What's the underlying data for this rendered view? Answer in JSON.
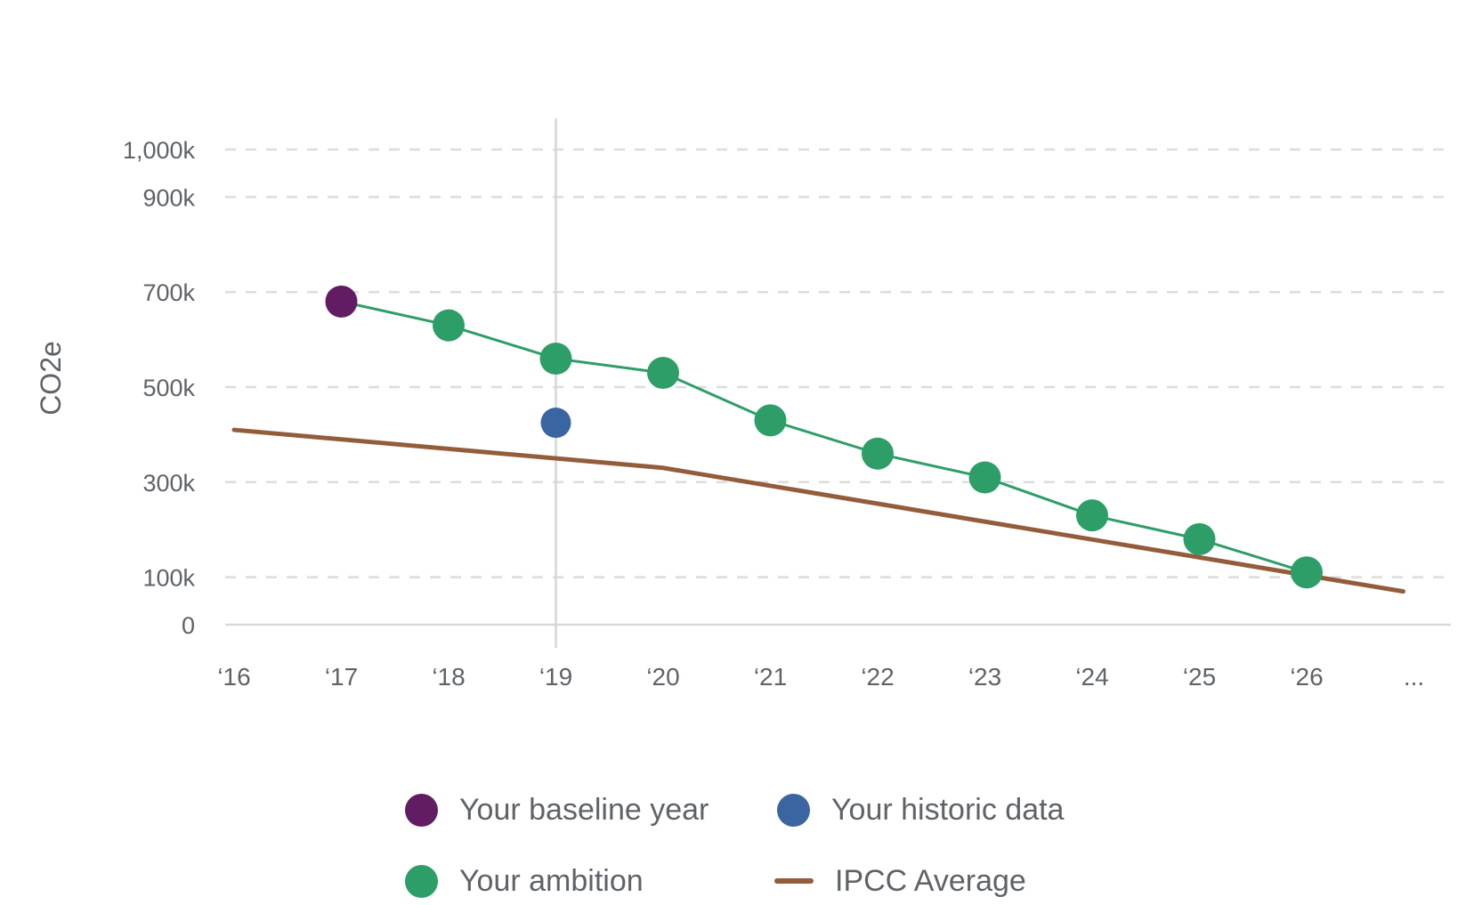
{
  "chart_data": {
    "type": "line",
    "ylabel": "CO2e",
    "xlabel": "",
    "ylim": [
      0,
      1000000
    ],
    "y_ticks": [
      {
        "value": 0,
        "label": "0"
      },
      {
        "value": 100000,
        "label": "100k"
      },
      {
        "value": 300000,
        "label": "300k"
      },
      {
        "value": 500000,
        "label": "500k"
      },
      {
        "value": 700000,
        "label": "700k"
      },
      {
        "value": 900000,
        "label": "900k"
      },
      {
        "value": 1000000,
        "label": "1,000k"
      }
    ],
    "x_ticks": [
      "‘16",
      "‘17",
      "‘18",
      "‘19",
      "‘20",
      "‘21",
      "‘22",
      "‘23",
      "‘24",
      "‘25",
      "‘26",
      "..."
    ],
    "reference_line_x": 3,
    "series": [
      {
        "name": "Your ambition",
        "kind": "line-markers",
        "color": "#2e9e68",
        "x": [
          1,
          2,
          3,
          4,
          5,
          6,
          7,
          8,
          9,
          10
        ],
        "values": [
          680000,
          630000,
          560000,
          530000,
          430000,
          360000,
          310000,
          230000,
          180000,
          110000
        ]
      },
      {
        "name": "IPCC Average",
        "kind": "line",
        "color": "#935d3c",
        "x": [
          0,
          4,
          10.9
        ],
        "values": [
          410000,
          330000,
          70000
        ]
      },
      {
        "name": "Your baseline year",
        "kind": "marker",
        "color": "#621c64",
        "x": [
          1
        ],
        "values": [
          680000
        ]
      },
      {
        "name": "Your historic data",
        "kind": "marker",
        "color": "#3a65a0",
        "x": [
          3
        ],
        "values": [
          425000
        ]
      }
    ]
  },
  "legend": {
    "baseline": {
      "label": "Your baseline year",
      "color": "#621c64"
    },
    "historic": {
      "label": "Your historic data",
      "color": "#3a65a0"
    },
    "ambition": {
      "label": "Your ambition",
      "color": "#2e9e68"
    },
    "ipcc": {
      "label": "IPCC Average",
      "color": "#935d3c"
    }
  }
}
